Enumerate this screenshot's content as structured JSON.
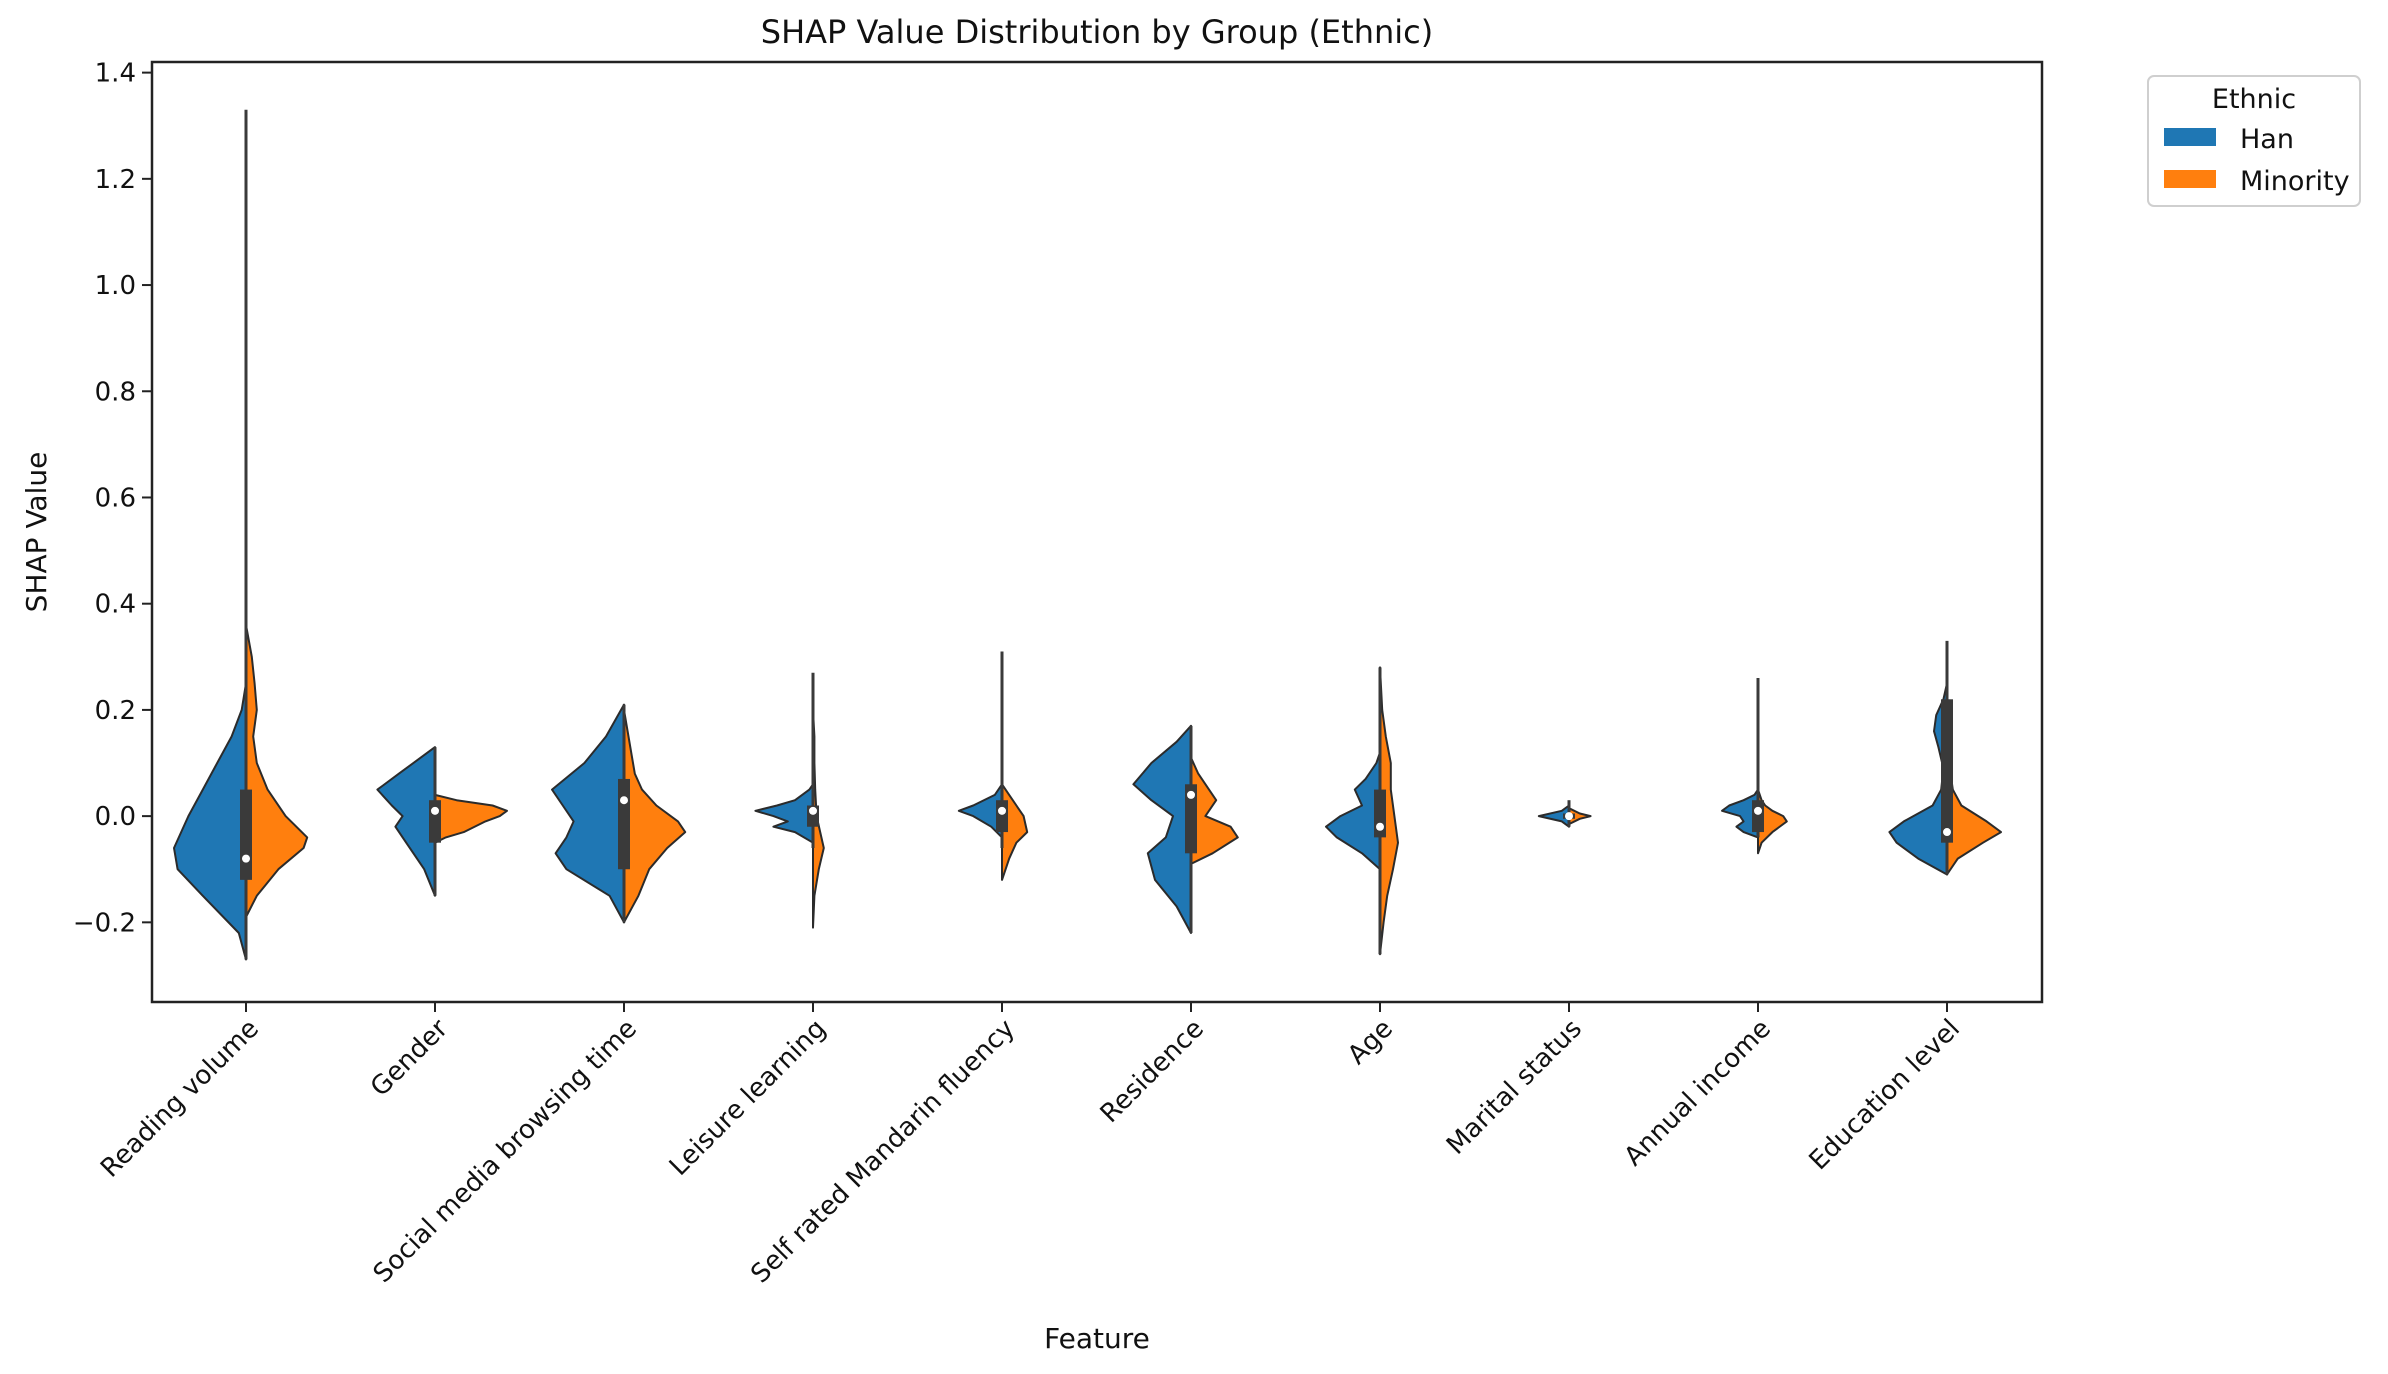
{
  "chart_data": {
    "type": "split-violin",
    "title": "SHAP Value Distribution by Group (Ethnic)",
    "xlabel": "Feature",
    "ylabel": "SHAP Value",
    "ylim": [
      -0.35,
      1.42
    ],
    "yticks": [
      -0.2,
      0.0,
      0.2,
      0.4,
      0.6,
      0.8,
      1.0,
      1.2,
      1.4
    ],
    "ytick_labels": [
      "−0.2",
      "0.0",
      "0.2",
      "0.4",
      "0.6",
      "0.8",
      "1.0",
      "1.2",
      "1.4"
    ],
    "legend": {
      "title": "Ethnic",
      "position": "outside-top-right",
      "entries": [
        {
          "name": "Han",
          "color": "#1f77b4"
        },
        {
          "name": "Minority",
          "color": "#ff7f0e"
        }
      ]
    },
    "categories": [
      "Reading volume",
      "Gender",
      "Social media browsing time",
      "Leisure learning",
      "Self rated Mandarin fluency",
      "Residence",
      "Age",
      "Marital status",
      "Annual income",
      "Education level"
    ],
    "series": [
      {
        "name": "Han",
        "color": "#1f77b4",
        "violins": [
          {
            "profile": [
              [
                -0.27,
                0.0
              ],
              [
                -0.22,
                0.1
              ],
              [
                -0.15,
                0.6
              ],
              [
                -0.1,
                0.95
              ],
              [
                -0.06,
                1.0
              ],
              [
                0.0,
                0.8
              ],
              [
                0.05,
                0.6
              ],
              [
                0.1,
                0.4
              ],
              [
                0.15,
                0.2
              ],
              [
                0.2,
                0.06
              ],
              [
                0.25,
                0.0
              ]
            ]
          },
          {
            "profile": [
              [
                -0.15,
                0.0
              ],
              [
                -0.1,
                0.15
              ],
              [
                -0.05,
                0.4
              ],
              [
                -0.02,
                0.55
              ],
              [
                0.0,
                0.45
              ],
              [
                0.02,
                0.6
              ],
              [
                0.05,
                0.8
              ],
              [
                0.08,
                0.5
              ],
              [
                0.11,
                0.2
              ],
              [
                0.13,
                0.0
              ]
            ]
          },
          {
            "profile": [
              [
                -0.2,
                0.0
              ],
              [
                -0.15,
                0.2
              ],
              [
                -0.1,
                0.8
              ],
              [
                -0.07,
                0.95
              ],
              [
                -0.04,
                0.8
              ],
              [
                -0.01,
                0.7
              ],
              [
                0.02,
                0.85
              ],
              [
                0.05,
                1.0
              ],
              [
                0.1,
                0.55
              ],
              [
                0.15,
                0.25
              ],
              [
                0.21,
                0.0
              ]
            ]
          },
          {
            "profile": [
              [
                -0.05,
                0.0
              ],
              [
                -0.03,
                0.25
              ],
              [
                -0.02,
                0.55
              ],
              [
                -0.01,
                0.35
              ],
              [
                0.0,
                0.55
              ],
              [
                0.01,
                0.8
              ],
              [
                0.02,
                0.5
              ],
              [
                0.03,
                0.25
              ],
              [
                0.05,
                0.05
              ],
              [
                0.06,
                0.0
              ]
            ]
          },
          {
            "profile": [
              [
                -0.04,
                0.0
              ],
              [
                -0.02,
                0.15
              ],
              [
                0.0,
                0.4
              ],
              [
                0.01,
                0.6
              ],
              [
                0.02,
                0.4
              ],
              [
                0.04,
                0.1
              ],
              [
                0.06,
                0.0
              ]
            ]
          },
          {
            "profile": [
              [
                -0.22,
                0.0
              ],
              [
                -0.17,
                0.2
              ],
              [
                -0.12,
                0.5
              ],
              [
                -0.07,
                0.6
              ],
              [
                -0.04,
                0.35
              ],
              [
                0.0,
                0.25
              ],
              [
                0.03,
                0.55
              ],
              [
                0.06,
                0.8
              ],
              [
                0.1,
                0.55
              ],
              [
                0.14,
                0.2
              ],
              [
                0.17,
                0.0
              ]
            ]
          },
          {
            "profile": [
              [
                -0.1,
                0.0
              ],
              [
                -0.07,
                0.25
              ],
              [
                -0.04,
                0.6
              ],
              [
                -0.02,
                0.75
              ],
              [
                0.0,
                0.55
              ],
              [
                0.02,
                0.25
              ],
              [
                0.05,
                0.35
              ],
              [
                0.07,
                0.2
              ],
              [
                0.1,
                0.05
              ],
              [
                0.12,
                0.0
              ]
            ]
          },
          {
            "profile": [
              [
                -0.02,
                0.0
              ],
              [
                -0.01,
                0.1
              ],
              [
                0.0,
                0.42
              ],
              [
                0.01,
                0.1
              ],
              [
                0.02,
                0.0
              ]
            ]
          },
          {
            "profile": [
              [
                -0.04,
                0.0
              ],
              [
                -0.03,
                0.2
              ],
              [
                -0.02,
                0.3
              ],
              [
                -0.01,
                0.2
              ],
              [
                0.0,
                0.25
              ],
              [
                0.01,
                0.5
              ],
              [
                0.02,
                0.4
              ],
              [
                0.03,
                0.2
              ],
              [
                0.04,
                0.05
              ],
              [
                0.05,
                0.0
              ]
            ]
          },
          {
            "profile": [
              [
                -0.11,
                0.0
              ],
              [
                -0.08,
                0.4
              ],
              [
                -0.05,
                0.7
              ],
              [
                -0.03,
                0.8
              ],
              [
                -0.01,
                0.6
              ],
              [
                0.02,
                0.2
              ],
              [
                0.05,
                0.08
              ],
              [
                0.09,
                0.05
              ],
              [
                0.13,
                0.12
              ],
              [
                0.16,
                0.18
              ],
              [
                0.19,
                0.15
              ],
              [
                0.22,
                0.05
              ],
              [
                0.25,
                0.0
              ]
            ]
          }
        ],
        "whisker_low": [
          -0.27,
          -0.15,
          -0.2,
          -0.06,
          -0.06,
          -0.22,
          -0.26,
          -0.02,
          -0.04,
          -0.11
        ],
        "whisker_high": [
          1.33,
          0.13,
          0.21,
          0.27,
          0.31,
          0.17,
          0.28,
          0.03,
          0.26,
          0.33
        ],
        "q1": [
          -0.12,
          -0.05,
          -0.1,
          -0.02,
          -0.03,
          -0.07,
          -0.04,
          -0.005,
          -0.03,
          -0.05
        ],
        "q3": [
          0.05,
          0.03,
          0.07,
          0.02,
          0.03,
          0.06,
          0.05,
          0.005,
          0.03,
          0.22
        ],
        "median": [
          -0.08,
          0.01,
          0.03,
          0.01,
          0.01,
          0.04,
          -0.02,
          0.0,
          0.01,
          -0.03
        ]
      },
      {
        "name": "Minority",
        "color": "#ff7f0e",
        "violins": [
          {
            "profile": [
              [
                -0.19,
                0.0
              ],
              [
                -0.15,
                0.15
              ],
              [
                -0.1,
                0.45
              ],
              [
                -0.06,
                0.8
              ],
              [
                -0.04,
                0.85
              ],
              [
                0.0,
                0.55
              ],
              [
                0.05,
                0.3
              ],
              [
                0.1,
                0.15
              ],
              [
                0.15,
                0.1
              ],
              [
                0.2,
                0.15
              ],
              [
                0.25,
                0.12
              ],
              [
                0.3,
                0.08
              ],
              [
                0.36,
                0.0
              ]
            ]
          },
          {
            "profile": [
              [
                -0.05,
                0.0
              ],
              [
                -0.04,
                0.15
              ],
              [
                -0.03,
                0.4
              ],
              [
                -0.01,
                0.7
              ],
              [
                0.0,
                0.9
              ],
              [
                0.01,
                1.0
              ],
              [
                0.02,
                0.8
              ],
              [
                0.03,
                0.3
              ],
              [
                0.04,
                0.0
              ]
            ]
          },
          {
            "profile": [
              [
                -0.2,
                0.0
              ],
              [
                -0.15,
                0.2
              ],
              [
                -0.1,
                0.35
              ],
              [
                -0.06,
                0.6
              ],
              [
                -0.03,
                0.85
              ],
              [
                -0.01,
                0.75
              ],
              [
                0.02,
                0.45
              ],
              [
                0.05,
                0.25
              ],
              [
                0.08,
                0.15
              ],
              [
                0.12,
                0.1
              ],
              [
                0.16,
                0.05
              ],
              [
                0.2,
                0.0
              ]
            ]
          },
          {
            "profile": [
              [
                -0.21,
                0.0
              ],
              [
                -0.15,
                0.02
              ],
              [
                -0.1,
                0.08
              ],
              [
                -0.06,
                0.15
              ],
              [
                -0.03,
                0.1
              ],
              [
                0.0,
                0.05
              ],
              [
                0.05,
                0.03
              ],
              [
                0.1,
                0.02
              ],
              [
                0.15,
                0.02
              ],
              [
                0.2,
                0.0
              ]
            ]
          },
          {
            "profile": [
              [
                -0.12,
                0.0
              ],
              [
                -0.08,
                0.1
              ],
              [
                -0.05,
                0.2
              ],
              [
                -0.03,
                0.35
              ],
              [
                0.0,
                0.3
              ],
              [
                0.02,
                0.2
              ],
              [
                0.04,
                0.1
              ],
              [
                0.06,
                0.0
              ]
            ]
          },
          {
            "profile": [
              [
                -0.09,
                0.0
              ],
              [
                -0.07,
                0.3
              ],
              [
                -0.04,
                0.65
              ],
              [
                -0.02,
                0.55
              ],
              [
                0.0,
                0.2
              ],
              [
                0.03,
                0.35
              ],
              [
                0.05,
                0.25
              ],
              [
                0.08,
                0.1
              ],
              [
                0.11,
                0.0
              ]
            ]
          },
          {
            "profile": [
              [
                -0.26,
                0.0
              ],
              [
                -0.2,
                0.05
              ],
              [
                -0.15,
                0.1
              ],
              [
                -0.1,
                0.18
              ],
              [
                -0.05,
                0.25
              ],
              [
                0.0,
                0.2
              ],
              [
                0.05,
                0.15
              ],
              [
                0.1,
                0.15
              ],
              [
                0.15,
                0.08
              ],
              [
                0.2,
                0.03
              ],
              [
                0.28,
                0.0
              ]
            ]
          },
          {
            "profile": [
              [
                -0.015,
                0.0
              ],
              [
                -0.005,
                0.15
              ],
              [
                0.0,
                0.3
              ],
              [
                0.005,
                0.15
              ],
              [
                0.015,
                0.0
              ]
            ]
          },
          {
            "profile": [
              [
                -0.07,
                0.0
              ],
              [
                -0.05,
                0.05
              ],
              [
                -0.03,
                0.2
              ],
              [
                -0.01,
                0.4
              ],
              [
                0.0,
                0.35
              ],
              [
                0.01,
                0.2
              ],
              [
                0.02,
                0.1
              ],
              [
                0.03,
                0.05
              ],
              [
                0.05,
                0.0
              ]
            ]
          },
          {
            "profile": [
              [
                -0.11,
                0.0
              ],
              [
                -0.08,
                0.15
              ],
              [
                -0.05,
                0.5
              ],
              [
                -0.03,
                0.75
              ],
              [
                -0.01,
                0.55
              ],
              [
                0.02,
                0.2
              ],
              [
                0.05,
                0.08
              ],
              [
                0.08,
                0.05
              ],
              [
                0.1,
                0.0
              ]
            ]
          }
        ]
      }
    ]
  }
}
